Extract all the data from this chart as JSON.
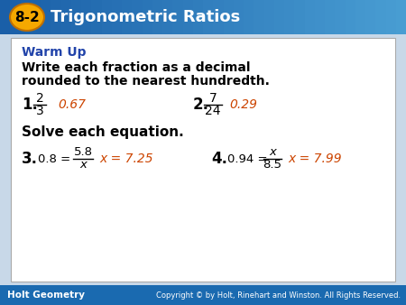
{
  "title_num": "8-2",
  "title_text": "Trigonometric Ratios",
  "header_bg_left": "#1a5fa8",
  "header_bg_right": "#4a9fd4",
  "circle_bg": "#f5a800",
  "warm_up_color": "#2244aa",
  "orange_answer": "#cc4400",
  "footer_bg": "#1a6ab0",
  "footer_left": "Holt Geometry",
  "footer_right": "Copyright © by Holt, Rinehart and Winston. All Rights Reserved.",
  "warm_up_label": "Warm Up",
  "instruction1": "Write each fraction as a decimal",
  "instruction1b": "rounded to the nearest hundredth.",
  "instruction2": "Solve each equation.",
  "q1_num": "1.",
  "q1_frac_num": "2",
  "q1_frac_den": "3",
  "q1_ans": "0.67",
  "q2_num": "2.",
  "q2_frac_num": "7",
  "q2_frac_den": "24",
  "q2_ans": "0.29",
  "q3_num": "3.",
  "q3_eq": "0.8 =",
  "q3_frac_num": "5.8",
  "q3_frac_den": "x",
  "q3_ans": "x = 7.25",
  "q4_num": "4.",
  "q4_eq": "0.94 =",
  "q4_frac_num": "x",
  "q4_frac_den": "8.5",
  "q4_ans": "x = 7.99",
  "fig_w": 4.5,
  "fig_h": 3.38,
  "dpi": 100
}
